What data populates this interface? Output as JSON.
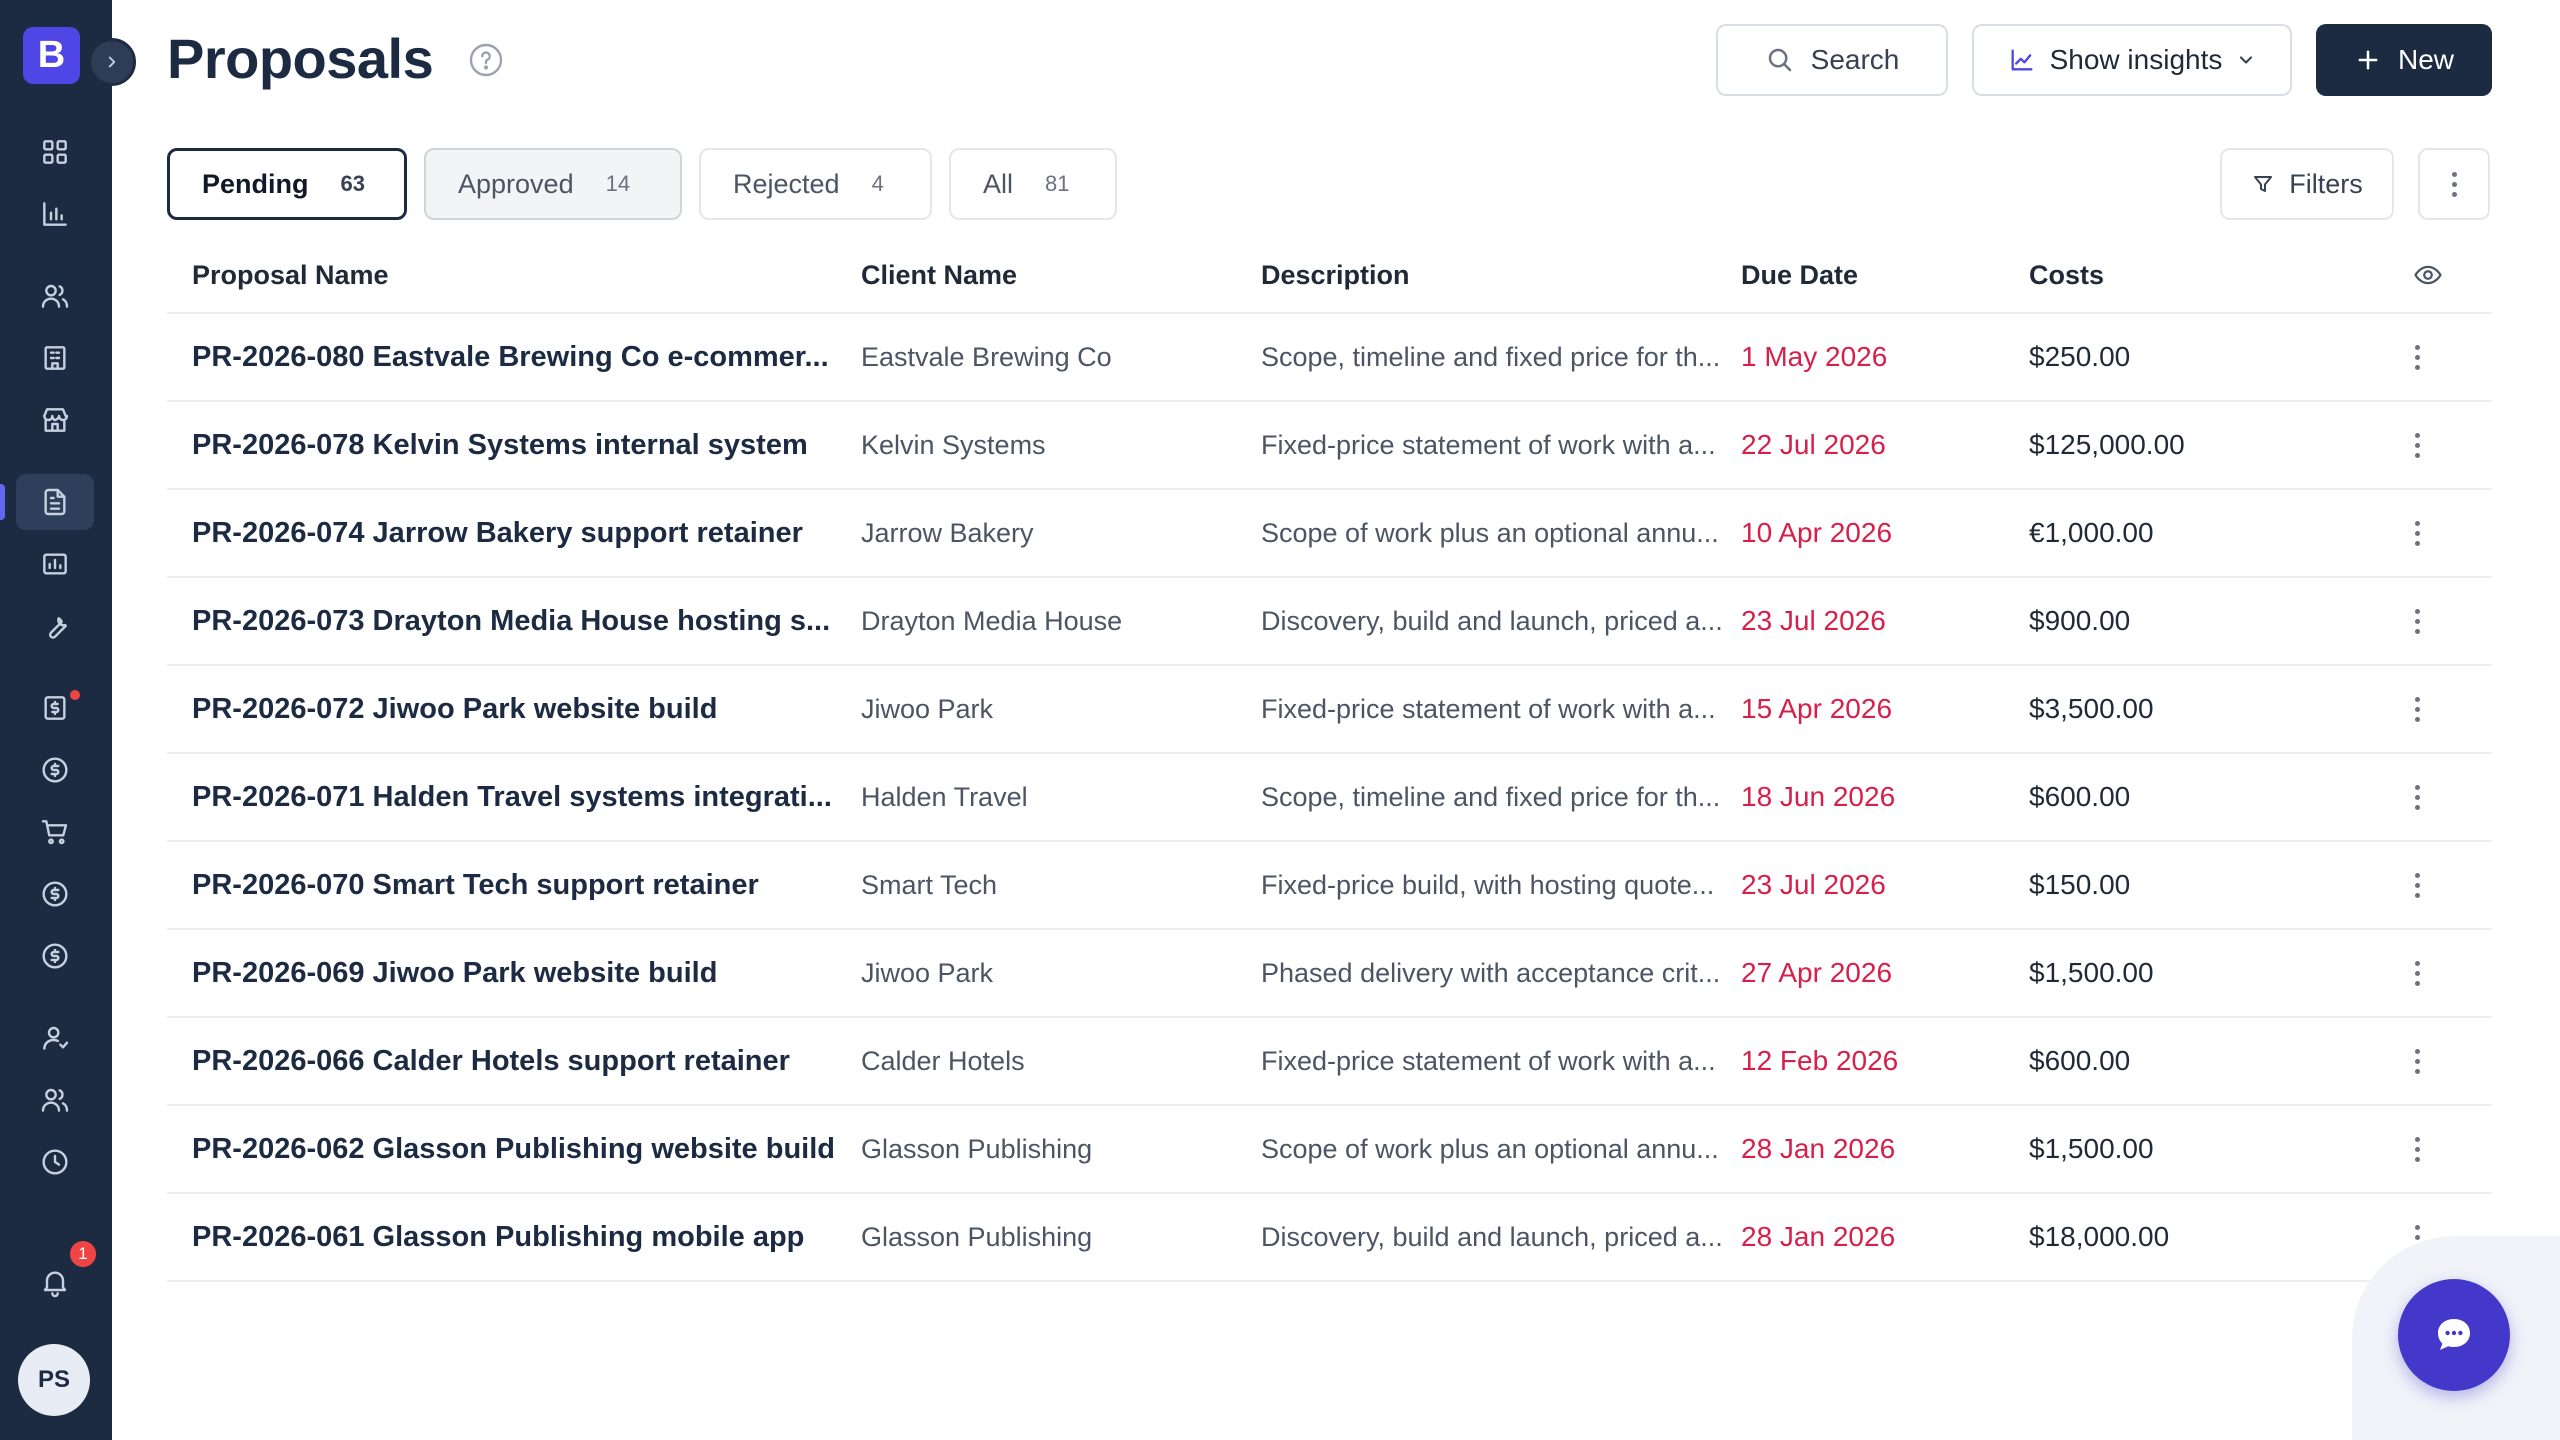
{
  "app": {
    "logo_letter": "B",
    "user_initials": "PS",
    "notification_count": "1"
  },
  "sidebar": {
    "items": [
      {
        "name": "dashboard",
        "icon": "grid-icon"
      },
      {
        "name": "reports",
        "icon": "bar-chart-icon"
      },
      {
        "name": "contacts",
        "icon": "users-icon"
      },
      {
        "name": "companies",
        "icon": "building-icon"
      },
      {
        "name": "stores",
        "icon": "store-icon"
      },
      {
        "name": "proposals",
        "icon": "document-icon",
        "active": true
      },
      {
        "name": "projects",
        "icon": "chart-box-icon"
      },
      {
        "name": "tools",
        "icon": "wrench-icon"
      },
      {
        "name": "invoices",
        "icon": "invoice-icon",
        "has_alert": true
      },
      {
        "name": "payments",
        "icon": "dollar-circle-icon"
      },
      {
        "name": "orders",
        "icon": "cart-icon"
      },
      {
        "name": "billing",
        "icon": "dollar-circle-icon"
      },
      {
        "name": "expenses",
        "icon": "dollar-circle-icon"
      },
      {
        "name": "account",
        "icon": "user-icon"
      },
      {
        "name": "team",
        "icon": "team-icon"
      },
      {
        "name": "time",
        "icon": "clock-icon"
      }
    ]
  },
  "header": {
    "title": "Proposals",
    "search_label": "Search",
    "insights_label": "Show insights",
    "new_label": "New"
  },
  "tabs": [
    {
      "label": "Pending",
      "count": "63"
    },
    {
      "label": "Approved",
      "count": "14"
    },
    {
      "label": "Rejected",
      "count": "4"
    },
    {
      "label": "All",
      "count": "81"
    }
  ],
  "toolbar": {
    "filters_label": "Filters"
  },
  "table": {
    "columns": [
      "Proposal Name",
      "Client Name",
      "Description",
      "Due Date",
      "Costs"
    ],
    "rows": [
      {
        "name": "PR-2026-080 Eastvale Brewing Co e-commer...",
        "client": "Eastvale Brewing Co",
        "description": "Scope, timeline and fixed price for th...",
        "due": "1 May 2026",
        "cost": "$250.00"
      },
      {
        "name": "PR-2026-078 Kelvin Systems internal system",
        "client": "Kelvin Systems",
        "description": "Fixed-price statement of work with a...",
        "due": "22 Jul 2026",
        "cost": "$125,000.00"
      },
      {
        "name": "PR-2026-074 Jarrow Bakery support retainer",
        "client": "Jarrow Bakery",
        "description": "Scope of work plus an optional annu...",
        "due": "10 Apr 2026",
        "cost": "€1,000.00"
      },
      {
        "name": "PR-2026-073 Drayton Media House hosting s...",
        "client": "Drayton Media House",
        "description": "Discovery, build and launch, priced a...",
        "due": "23 Jul 2026",
        "cost": "$900.00"
      },
      {
        "name": "PR-2026-072 Jiwoo Park website build",
        "client": "Jiwoo Park",
        "description": "Fixed-price statement of work with a...",
        "due": "15 Apr 2026",
        "cost": "$3,500.00"
      },
      {
        "name": "PR-2026-071 Halden Travel systems integrati...",
        "client": "Halden Travel",
        "description": "Scope, timeline and fixed price for th...",
        "due": "18 Jun 2026",
        "cost": "$600.00"
      },
      {
        "name": "PR-2026-070 Smart Tech support retainer",
        "client": "Smart Tech",
        "description": "Fixed-price build, with hosting quote...",
        "due": "23 Jul 2026",
        "cost": "$150.00"
      },
      {
        "name": "PR-2026-069 Jiwoo Park website build",
        "client": "Jiwoo Park",
        "description": "Phased delivery with acceptance crit...",
        "due": "27 Apr 2026",
        "cost": "$1,500.00"
      },
      {
        "name": "PR-2026-066 Calder Hotels support retainer",
        "client": "Calder Hotels",
        "description": "Fixed-price statement of work with a...",
        "due": "12 Feb 2026",
        "cost": "$600.00"
      },
      {
        "name": "PR-2026-062 Glasson Publishing website build",
        "client": "Glasson Publishing",
        "description": "Scope of work plus an optional annu...",
        "due": "28 Jan 2026",
        "cost": "$1,500.00"
      },
      {
        "name": "PR-2026-061 Glasson Publishing mobile app",
        "client": "Glasson Publishing",
        "description": "Discovery, build and launch, priced a...",
        "due": "28 Jan 2026",
        "cost": "$18,000.00"
      }
    ]
  },
  "colors": {
    "sidebar_bg": "#1c2b42",
    "accent": "#4f46e5",
    "due_date": "#d61f4a",
    "primary_button": "#1c2b42"
  }
}
